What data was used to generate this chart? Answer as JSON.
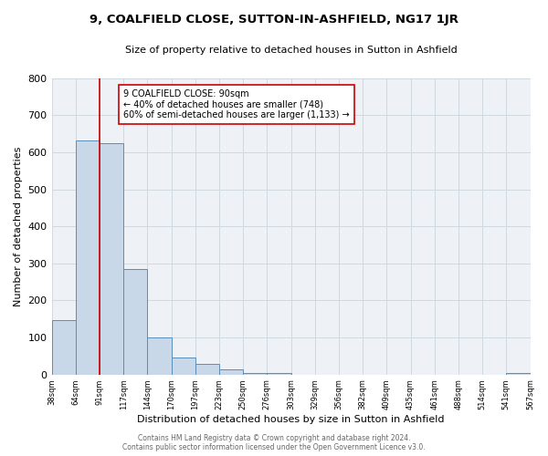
{
  "title": "9, COALFIELD CLOSE, SUTTON-IN-ASHFIELD, NG17 1JR",
  "subtitle": "Size of property relative to detached houses in Sutton in Ashfield",
  "xlabel": "Distribution of detached houses by size in Sutton in Ashfield",
  "ylabel": "Number of detached properties",
  "bar_values": [
    148,
    632,
    625,
    286,
    100,
    45,
    30,
    15,
    5,
    5,
    0,
    0,
    0,
    0,
    0,
    0,
    0,
    0,
    0,
    5
  ],
  "bin_labels": [
    "38sqm",
    "64sqm",
    "91sqm",
    "117sqm",
    "144sqm",
    "170sqm",
    "197sqm",
    "223sqm",
    "250sqm",
    "276sqm",
    "303sqm",
    "329sqm",
    "356sqm",
    "382sqm",
    "409sqm",
    "435sqm",
    "461sqm",
    "488sqm",
    "514sqm",
    "541sqm",
    "567sqm"
  ],
  "bar_color": "#c8d8e8",
  "bar_edge_color": "#5b8db8",
  "grid_color": "#d0d8e0",
  "background_color": "#eef2f7",
  "marker_color": "#cc0000",
  "annotation_title": "9 COALFIELD CLOSE: 90sqm",
  "annotation_line1": "← 40% of detached houses are smaller (748)",
  "annotation_line2": "60% of semi-detached houses are larger (1,133) →",
  "annotation_box_color": "#ffffff",
  "annotation_box_edge": "#cc0000",
  "ylim": [
    0,
    800
  ],
  "yticks": [
    0,
    100,
    200,
    300,
    400,
    500,
    600,
    700,
    800
  ],
  "footer_line1": "Contains HM Land Registry data © Crown copyright and database right 2024.",
  "footer_line2": "Contains public sector information licensed under the Open Government Licence v3.0."
}
